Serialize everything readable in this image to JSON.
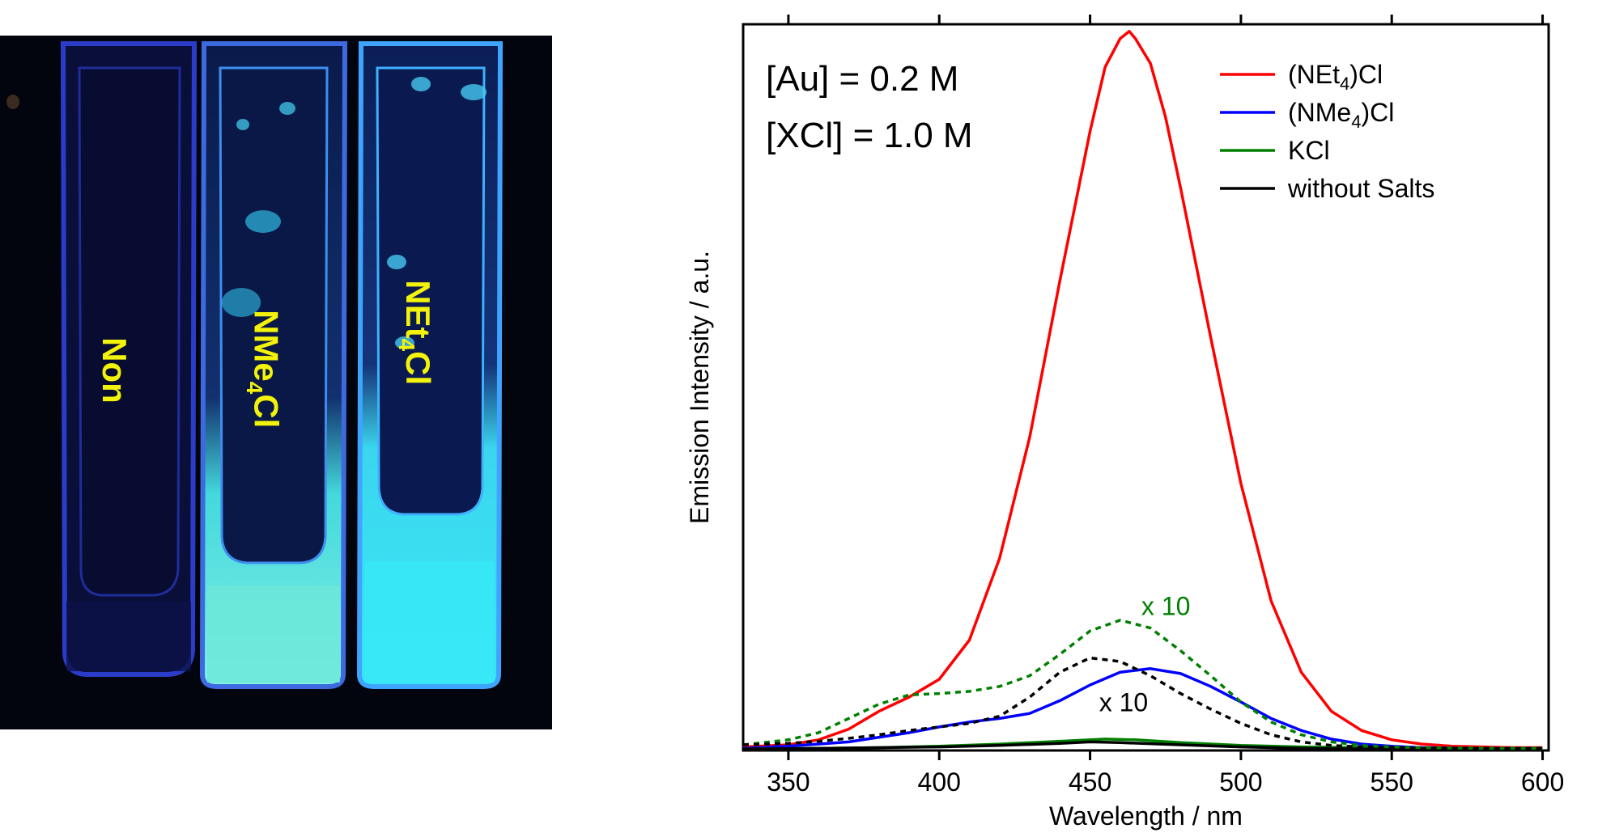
{
  "photo": {
    "labels": [
      {
        "main": "Non",
        "sub": "",
        "tail": ""
      },
      {
        "main": "NMe",
        "sub": "4",
        "tail": "Cl"
      },
      {
        "main": "NEt",
        "sub": "4",
        "tail": "Cl"
      }
    ]
  },
  "chart_data": {
    "type": "line",
    "xlabel": "Wavelength / nm",
    "ylabel": "Emission Intensity / a.u.",
    "xlim": [
      335,
      602
    ],
    "ylim": [
      0,
      1.02
    ],
    "xticks": [
      350,
      400,
      450,
      500,
      550,
      600
    ],
    "yticks": [],
    "grid": false,
    "legend_position": "top-right",
    "annotations": {
      "au": "[Au] = 0.2 M",
      "xcl": "[XCl] = 1.0 M",
      "green_x10": "x 10",
      "black_x10": "x 10"
    },
    "series": [
      {
        "name": "(NEt4)Cl",
        "legend_main": "(NEt",
        "legend_sub": "4",
        "legend_tail": ")Cl",
        "color": "#ff0000",
        "dash": "solid",
        "x": [
          335,
          350,
          360,
          370,
          380,
          390,
          400,
          410,
          420,
          430,
          440,
          450,
          455,
          460,
          463,
          465,
          470,
          475,
          480,
          490,
          500,
          510,
          520,
          530,
          540,
          550,
          560,
          570,
          580,
          590,
          600
        ],
        "y": [
          0.005,
          0.008,
          0.015,
          0.03,
          0.055,
          0.075,
          0.1,
          0.155,
          0.27,
          0.44,
          0.66,
          0.87,
          0.96,
          1.0,
          1.01,
          1.0,
          0.965,
          0.89,
          0.79,
          0.58,
          0.375,
          0.21,
          0.11,
          0.055,
          0.028,
          0.015,
          0.009,
          0.006,
          0.005,
          0.004,
          0.004
        ]
      },
      {
        "name": "(NMe4)Cl",
        "legend_main": "(NMe",
        "legend_sub": "4",
        "legend_tail": ")Cl",
        "color": "#0000ff",
        "dash": "solid",
        "x": [
          335,
          350,
          370,
          390,
          400,
          410,
          420,
          430,
          440,
          450,
          460,
          470,
          480,
          490,
          500,
          510,
          520,
          530,
          540,
          550,
          560,
          580,
          600
        ],
        "y": [
          0.003,
          0.006,
          0.012,
          0.025,
          0.033,
          0.04,
          0.045,
          0.052,
          0.07,
          0.092,
          0.11,
          0.115,
          0.108,
          0.09,
          0.068,
          0.045,
          0.028,
          0.016,
          0.009,
          0.006,
          0.004,
          0.003,
          0.003
        ]
      },
      {
        "name": "KCl",
        "legend_main": "KCl",
        "legend_sub": "",
        "legend_tail": "",
        "color": "#008000",
        "dash": "solid",
        "x": [
          335,
          360,
          380,
          400,
          420,
          440,
          455,
          465,
          480,
          500,
          520,
          540,
          560,
          580,
          600
        ],
        "y": [
          0.002,
          0.003,
          0.004,
          0.006,
          0.009,
          0.013,
          0.016,
          0.015,
          0.011,
          0.007,
          0.005,
          0.004,
          0.003,
          0.003,
          0.003
        ]
      },
      {
        "name": "without Salts",
        "legend_main": "without Salts",
        "legend_sub": "",
        "legend_tail": "",
        "color": "#000000",
        "dash": "solid",
        "x": [
          335,
          360,
          380,
          400,
          420,
          440,
          450,
          460,
          480,
          500,
          520,
          540,
          560,
          580,
          600
        ],
        "y": [
          0.002,
          0.003,
          0.004,
          0.005,
          0.007,
          0.01,
          0.012,
          0.011,
          0.008,
          0.005,
          0.003,
          0.002,
          0.002,
          0.002,
          0.002
        ]
      },
      {
        "name": "",
        "color": "#008000",
        "dash": "dotted",
        "x": [
          335,
          350,
          360,
          370,
          380,
          390,
          400,
          410,
          420,
          430,
          440,
          450,
          460,
          470,
          480,
          490,
          500,
          510,
          520,
          530,
          540,
          550,
          560,
          580,
          600
        ],
        "y": [
          0.008,
          0.015,
          0.025,
          0.045,
          0.065,
          0.078,
          0.08,
          0.083,
          0.09,
          0.105,
          0.135,
          0.168,
          0.183,
          0.172,
          0.14,
          0.105,
          0.068,
          0.04,
          0.022,
          0.012,
          0.007,
          0.005,
          0.004,
          0.003,
          0.003
        ]
      },
      {
        "name": "",
        "color": "#000000",
        "dash": "dotted",
        "x": [
          335,
          350,
          360,
          370,
          380,
          390,
          400,
          410,
          420,
          430,
          440,
          450,
          460,
          470,
          480,
          490,
          500,
          510,
          520,
          530,
          540,
          550,
          560,
          580,
          600
        ],
        "y": [
          0.008,
          0.01,
          0.013,
          0.017,
          0.022,
          0.028,
          0.033,
          0.038,
          0.048,
          0.075,
          0.11,
          0.13,
          0.125,
          0.105,
          0.08,
          0.058,
          0.038,
          0.022,
          0.012,
          0.007,
          0.005,
          0.004,
          0.003,
          0.003,
          0.003
        ]
      }
    ]
  }
}
